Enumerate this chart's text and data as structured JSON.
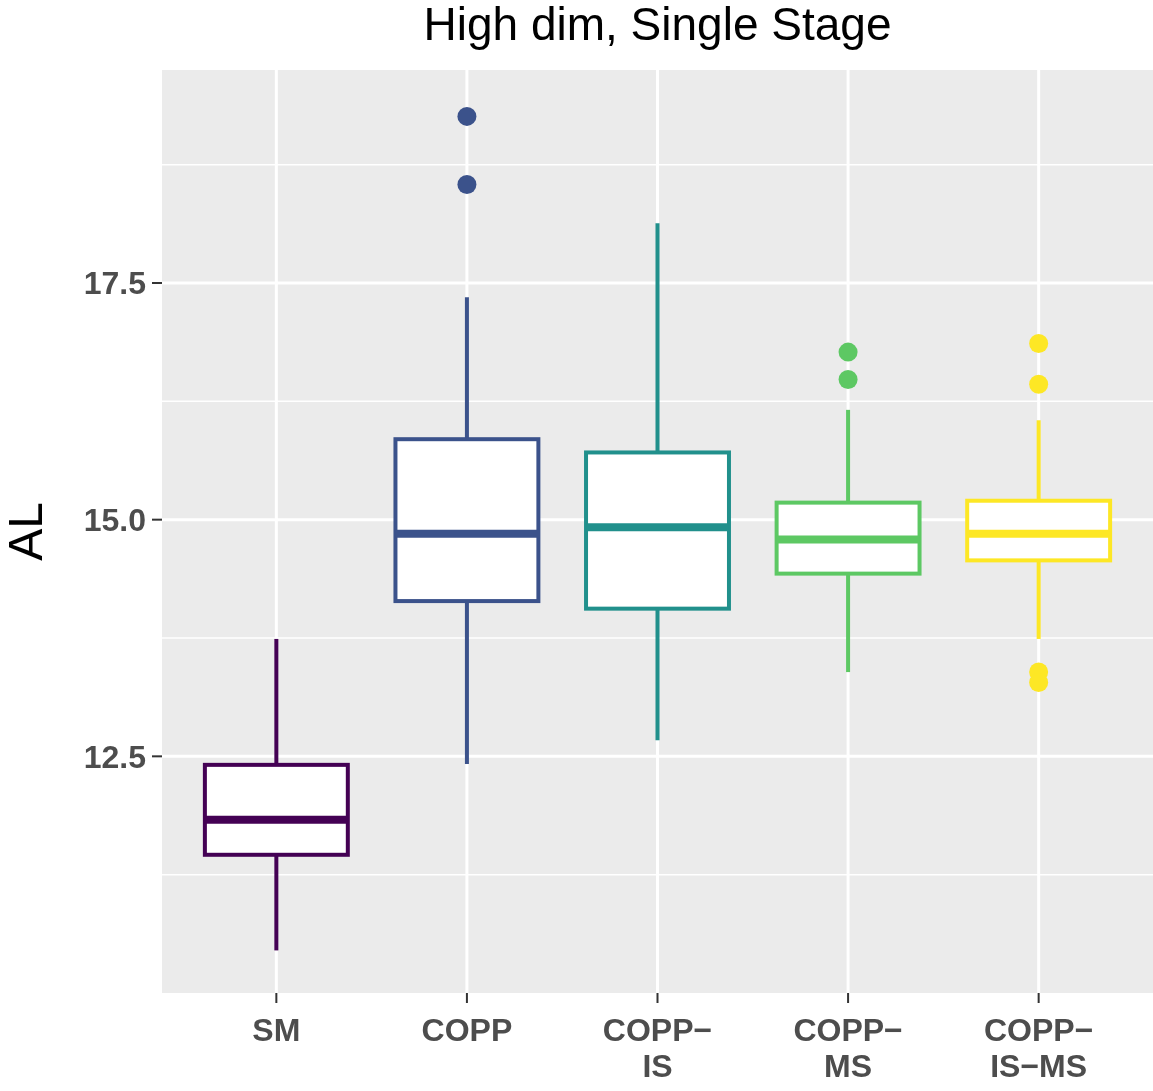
{
  "chart_data": {
    "type": "box",
    "title": "High dim, Single Stage",
    "ylabel": "AL",
    "categories": [
      "SM",
      "COPP",
      "COPP−\nIS",
      "COPP−\nMS",
      "COPP−\nIS−MS"
    ],
    "colors": [
      "#440154",
      "#3b528b",
      "#21908c",
      "#5dc863",
      "#fde725"
    ],
    "boxes": [
      {
        "low": 10.45,
        "q1": 11.46,
        "median": 11.83,
        "q3": 12.41,
        "high": 13.74
      },
      {
        "low": 12.42,
        "q1": 14.14,
        "median": 14.85,
        "q3": 15.85,
        "high": 17.35,
        "outliers": [
          19.26,
          18.54
        ]
      },
      {
        "low": 12.67,
        "q1": 14.06,
        "median": 14.92,
        "q3": 15.71,
        "high": 18.13
      },
      {
        "low": 13.39,
        "q1": 14.43,
        "median": 14.79,
        "q3": 15.18,
        "high": 16.16,
        "outliers": [
          16.77,
          16.48
        ]
      },
      {
        "low": 13.74,
        "q1": 14.57,
        "median": 14.85,
        "q3": 15.2,
        "high": 16.05,
        "outliers": [
          16.86,
          16.43,
          13.39,
          13.28
        ]
      }
    ],
    "ylim": [
      10.0,
      19.75
    ],
    "yticks": [
      {
        "value": 11.25,
        "label": null
      },
      {
        "value": 12.5,
        "label": "12.5"
      },
      {
        "value": 13.75,
        "label": null
      },
      {
        "value": 15,
        "label": "15.0"
      },
      {
        "value": 16.25,
        "label": null
      },
      {
        "value": 17.5,
        "label": "17.5"
      },
      {
        "value": 18.75,
        "label": null
      }
    ],
    "grid": true
  }
}
